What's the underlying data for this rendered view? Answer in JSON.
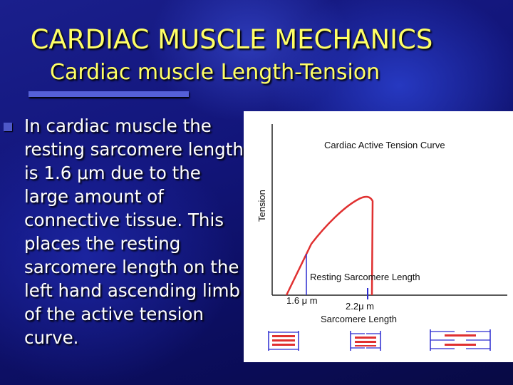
{
  "slide": {
    "title": "CARDIAC  MUSCLE MECHANICS",
    "subtitle": "Cardiac  muscle Length-Tension",
    "body_lines": [
      "In cardiac muscle the",
      "resting sarcomere length",
      "is 1.6 μm due to the",
      "large amount of",
      "connective tissue.  This",
      "places the resting",
      "sarcomere length on the",
      "left hand ascending limb",
      "of the active tension",
      "curve."
    ],
    "colors": {
      "title": "#ffff66",
      "body": "#ffffff",
      "background": "#12157a",
      "curve": "#e03030",
      "marker": "#2a2ad0"
    }
  },
  "figure": {
    "chart_title": "Cardiac Active Tension Curve",
    "y_label": "Tension",
    "x_label": "Sarcomere Length",
    "resting_label": "Resting Sarcomere Length",
    "tick_1": "1.6 μ m",
    "tick_2": "2.2μ m"
  }
}
